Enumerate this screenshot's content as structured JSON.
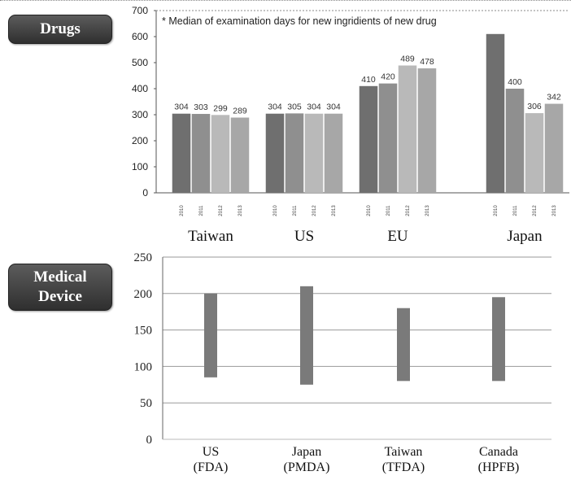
{
  "badges": {
    "drugs": "Drugs",
    "device": "Medical\nDevice"
  },
  "chart_data": [
    {
      "type": "bar",
      "title": "",
      "annotation": "* Median of examination days for new ingridients of new drug",
      "categories": [
        "Taiwan",
        "US",
        "EU",
        "Japan"
      ],
      "series_years": [
        "2010",
        "2011",
        "2012",
        "2013"
      ],
      "values": [
        [
          304,
          303,
          299,
          289
        ],
        [
          304,
          305,
          304,
          304
        ],
        [
          410,
          420,
          489,
          478
        ],
        [
          610,
          400,
          306,
          342
        ]
      ],
      "value_labels": [
        [
          "304",
          "303",
          "299",
          "289"
        ],
        [
          "304",
          "305",
          "304",
          "304"
        ],
        [
          "410",
          "420",
          "489",
          "478"
        ],
        [
          "",
          "400",
          "306",
          "342"
        ]
      ],
      "yticks": [
        0,
        100,
        200,
        300,
        400,
        500,
        600,
        700
      ],
      "ylim": [
        0,
        700
      ],
      "grid": false,
      "colors": [
        "#6f6f6f",
        "#8f8f8f",
        "#b9b9b9",
        "#a7a7a7"
      ]
    },
    {
      "type": "range",
      "categories": [
        "US\n(FDA)",
        "Japan\n(PMDA)",
        "Taiwan\n(TFDA)",
        "Canada\n(HPFB)"
      ],
      "low": [
        85,
        75,
        80,
        80
      ],
      "high": [
        200,
        210,
        180,
        195
      ],
      "yticks": [
        0,
        50,
        100,
        150,
        200,
        250
      ],
      "ylim": [
        0,
        250
      ],
      "grid": true,
      "color": "#7a7a7a"
    }
  ]
}
